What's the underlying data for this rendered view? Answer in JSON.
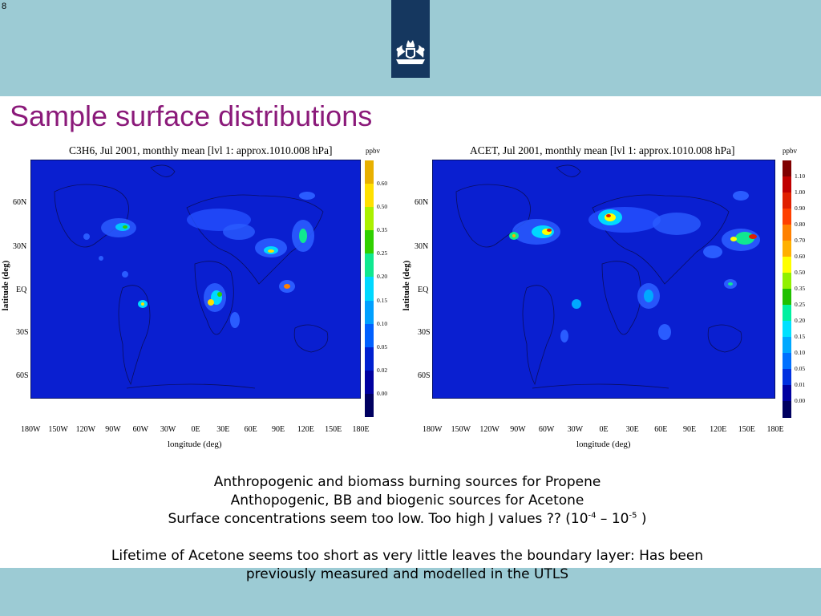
{
  "slide_number": "8",
  "title": "Sample surface distributions",
  "colors": {
    "bar": "#9ccbd4",
    "title": "#8b1a7a",
    "map_bg": "#0a1fd0",
    "logo_bg": "#15375f"
  },
  "logo_icon": "crest-icon",
  "maps": [
    {
      "title": "C3H6, Jul 2001, monthly mean [lvl 1: approx.1010.008 hPa]",
      "ylabel": "latitude (deg)",
      "xlabel": "longitude (deg)",
      "yticks": [
        "60N",
        "30N",
        "EQ",
        "30S",
        "60S"
      ],
      "xticks": [
        "180W",
        "150W",
        "120W",
        "90W",
        "60W",
        "30W",
        "0E",
        "30E",
        "60E",
        "90E",
        "120E",
        "150E",
        "180E"
      ],
      "colorbar_unit": "ppbv",
      "colorbar_ticks": [
        "0.60",
        "0.50",
        "0.35",
        "0.25",
        "0.20",
        "0.15",
        "0.10",
        "0.05",
        "0.02",
        "0.00"
      ],
      "colorbar_colors": [
        "#e8b000",
        "#ffe000",
        "#aaf000",
        "#30d000",
        "#10e890",
        "#00d8ff",
        "#00a0ff",
        "#0060ff",
        "#0020d0",
        "#0000a0",
        "#000060"
      ]
    },
    {
      "title": "ACET, Jul 2001, monthly mean [lvl 1: approx.1010.008 hPa]",
      "ylabel": "latitude (deg)",
      "xlabel": "longitude (deg)",
      "yticks": [
        "60N",
        "30N",
        "EQ",
        "30S",
        "60S"
      ],
      "xticks": [
        "180W",
        "150W",
        "120W",
        "90W",
        "60W",
        "30W",
        "0E",
        "30E",
        "60E",
        "90E",
        "120E",
        "150E",
        "180E"
      ],
      "colorbar_unit": "ppbv",
      "colorbar_ticks": [
        "1.10",
        "1.00",
        "0.90",
        "0.80",
        "0.70",
        "0.60",
        "0.50",
        "0.35",
        "0.25",
        "0.20",
        "0.15",
        "0.10",
        "0.05",
        "0.01",
        "0.00"
      ],
      "colorbar_colors": [
        "#800000",
        "#c00000",
        "#e02000",
        "#ff4000",
        "#ff8000",
        "#ffb000",
        "#ffff00",
        "#90f000",
        "#20c000",
        "#00f0a0",
        "#00e0ff",
        "#00a8ff",
        "#0070ff",
        "#0030e0",
        "#0000a0",
        "#000060"
      ]
    }
  ],
  "caption": {
    "line1": "Anthropogenic and biomass burning sources for Propene",
    "line2": "Anthopogenic, BB and biogenic sources for Acetone",
    "line3_pre": "Surface concentrations seem too low. Too high J values ?? (10",
    "line3_exp1": "-4",
    "line3_mid": " – 10",
    "line3_exp2": "-5",
    "line3_post": " )",
    "line4": "Lifetime of Acetone seems too short as very little leaves the boundary layer: Has been",
    "line5": "previously measured and modelled in the UTLS"
  }
}
